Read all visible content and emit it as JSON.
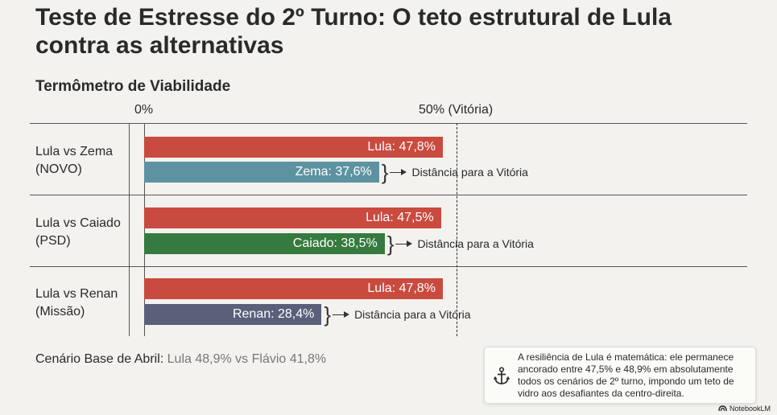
{
  "header": {
    "title": "Teste de Estresse do 2º Turno: O teto estrutural de Lula contra as alternativas"
  },
  "chart_data": {
    "type": "bar",
    "title": "Termômetro de Viabilidade",
    "xlim": [
      0,
      50
    ],
    "ticks": [
      "0%",
      "50% (Vitória)"
    ],
    "reference_line": 50,
    "groups": [
      {
        "label_line1": "Lula vs Zema",
        "label_line2": "(NOVO)",
        "bars": [
          {
            "name": "Lula",
            "value": 47.8,
            "label": "Lula: 47,8%",
            "color": "#c94a3f"
          },
          {
            "name": "Zema",
            "value": 37.6,
            "label": "Zema: 37,6%",
            "color": "#5d93a0"
          }
        ],
        "gap_label": "Distância para a Vitória"
      },
      {
        "label_line1": "Lula vs Caiado",
        "label_line2": "(PSD)",
        "bars": [
          {
            "name": "Lula",
            "value": 47.5,
            "label": "Lula: 47,5%",
            "color": "#c94a3f"
          },
          {
            "name": "Caiado",
            "value": 38.5,
            "label": "Caiado: 38,5%",
            "color": "#357a3e"
          }
        ],
        "gap_label": "Distância para a Vitória"
      },
      {
        "label_line1": "Lula vs Renan",
        "label_line2": "(Missão)",
        "bars": [
          {
            "name": "Lula",
            "value": 47.8,
            "label": "Lula: 47,8%",
            "color": "#c94a3f"
          },
          {
            "name": "Renan",
            "value": 28.4,
            "label": "Renan: 28,4%",
            "color": "#5a607a"
          }
        ],
        "gap_label": "Distância para a Vitória"
      }
    ]
  },
  "base": {
    "label": "Cenário Base de Abril:",
    "value": "Lula 48,9% vs Flávio 41,8%"
  },
  "note": {
    "icon": "anchor-icon",
    "text": "A resiliência de Lula é matemática: ele permanece ancorado entre 47,5% e 48,9% em absolutamente todos os cenários de 2º turno, impondo um teto de vidro aos desafiantes da centro-direita."
  },
  "brand": {
    "icon": "notebook-logo-icon",
    "text": "NotebookLM"
  }
}
